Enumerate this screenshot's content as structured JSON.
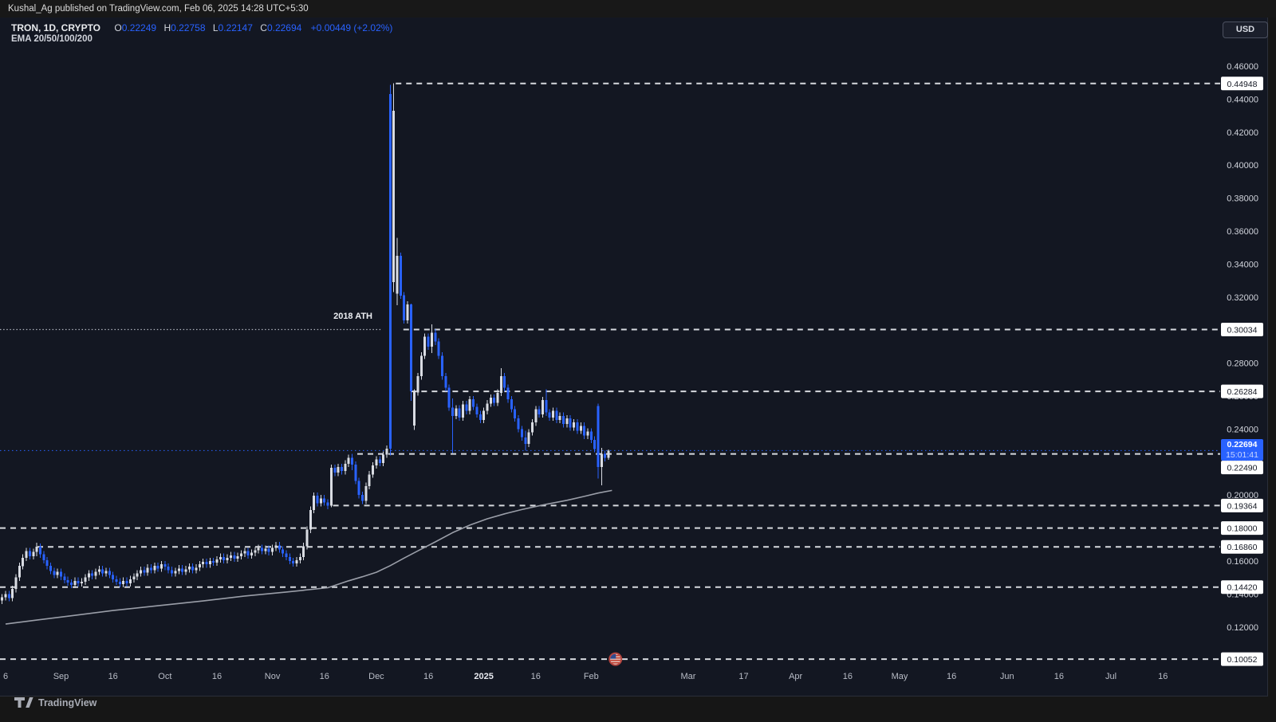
{
  "attribution": {
    "text": "Kushal_Ag published on TradingView.com, Feb 06, 2025 14:28 UTC+5:30"
  },
  "symbol_bar": {
    "title": "TRON, 1D, CRYPTO",
    "o_label": "O",
    "o_value": "0.22249",
    "h_label": "H",
    "h_value": "0.22758",
    "l_label": "L",
    "l_value": "0.22147",
    "c_label": "C",
    "c_value": "0.22694",
    "change": "+0.00449 (+2.02%)"
  },
  "indicator_bar": {
    "label": "EMA 20/50/100/200"
  },
  "currency_button": {
    "label": "USD"
  },
  "watermark": {
    "label": "TradingView"
  },
  "annotations": {
    "ath_text": "2018 ATH",
    "ath_price": 0.30034,
    "ath_dotted_to_day": 109.5
  },
  "current_price": {
    "value": "0.22694",
    "countdown": "15:01:41",
    "price": 0.22694
  },
  "icons": {
    "event_marker": "us-flag-circle-icon",
    "logo_mark": "tradingview-mark-icon"
  },
  "chart_data": {
    "type": "candlestick",
    "symbol": "TRON",
    "interval": "1D",
    "exchange": "CRYPTO",
    "quote_currency": "USD",
    "ylim": [
      0.1,
      0.46
    ],
    "y_axis": {
      "tick_max": 0.46,
      "tick_min": 0.1,
      "tick_step": 0.02,
      "decimals": 5
    },
    "x_axis": {
      "start_date": "2024-08-15",
      "ticks": [
        {
          "label": "6",
          "day": 1
        },
        {
          "label": "Sep",
          "day": 17
        },
        {
          "label": "16",
          "day": 32
        },
        {
          "label": "Oct",
          "day": 47
        },
        {
          "label": "16",
          "day": 62
        },
        {
          "label": "Nov",
          "day": 78
        },
        {
          "label": "16",
          "day": 93
        },
        {
          "label": "Dec",
          "day": 108
        },
        {
          "label": "16",
          "day": 123
        },
        {
          "label": "2025",
          "day": 139,
          "bold": true
        },
        {
          "label": "16",
          "day": 154
        },
        {
          "label": "Feb",
          "day": 170
        },
        {
          "label": "Mar",
          "day": 198
        },
        {
          "label": "17",
          "day": 214
        },
        {
          "label": "Apr",
          "day": 229
        },
        {
          "label": "16",
          "day": 244
        },
        {
          "label": "May",
          "day": 259
        },
        {
          "label": "16",
          "day": 274
        },
        {
          "label": "Jun",
          "day": 290
        },
        {
          "label": "16",
          "day": 305
        },
        {
          "label": "Jul",
          "day": 320
        },
        {
          "label": "16",
          "day": 335
        }
      ]
    },
    "levels": [
      {
        "price": 0.44948,
        "label": "0.44948",
        "from_day": 113.6
      },
      {
        "price": 0.30034,
        "label": "0.30034",
        "from_day": 115.8
      },
      {
        "price": 0.26284,
        "label": "0.26284",
        "from_day": 118.0
      },
      {
        "price": 0.2249,
        "label": "0.22490",
        "from_day": 102.5,
        "label_dy": 17
      },
      {
        "price": 0.19364,
        "label": "0.19364",
        "from_day": 95.5
      },
      {
        "price": 0.18,
        "label": "0.18000",
        "from_day": null
      },
      {
        "price": 0.1686,
        "label": "0.16860",
        "from_day": 10.2
      },
      {
        "price": 0.1442,
        "label": "0.14420",
        "from_day": null
      },
      {
        "price": 0.10052,
        "label": "0.10052",
        "from_day": null
      }
    ],
    "closes": [
      0.138,
      0.14,
      0.1375,
      0.143,
      0.15,
      0.157,
      0.162,
      0.166,
      0.163,
      0.1655,
      0.1686,
      0.164,
      0.1605,
      0.157,
      0.154,
      0.1515,
      0.1535,
      0.1505,
      0.1485,
      0.147,
      0.1455,
      0.148,
      0.1465,
      0.1475,
      0.15,
      0.1525,
      0.151,
      0.1535,
      0.155,
      0.1525,
      0.154,
      0.1515,
      0.149,
      0.1475,
      0.146,
      0.148,
      0.1465,
      0.149,
      0.1505,
      0.1525,
      0.1545,
      0.153,
      0.156,
      0.1545,
      0.157,
      0.1555,
      0.158,
      0.1565,
      0.1545,
      0.1525,
      0.154,
      0.1555,
      0.1535,
      0.155,
      0.1565,
      0.1545,
      0.156,
      0.158,
      0.1595,
      0.158,
      0.16,
      0.159,
      0.161,
      0.1625,
      0.1605,
      0.162,
      0.1635,
      0.1615,
      0.163,
      0.1645,
      0.166,
      0.1635,
      0.165,
      0.1665,
      0.168,
      0.166,
      0.1675,
      0.1655,
      0.168,
      0.1695,
      0.167,
      0.1645,
      0.1625,
      0.16,
      0.1585,
      0.1605,
      0.1625,
      0.169,
      0.179,
      0.191,
      0.1995,
      0.195,
      0.198,
      0.1955,
      0.1935,
      0.2165,
      0.2135,
      0.217,
      0.2145,
      0.219,
      0.2225,
      0.2185,
      0.2085,
      0.2,
      0.1965,
      0.2055,
      0.2125,
      0.218,
      0.2215,
      0.2195,
      0.2245,
      0.228,
      0.228,
      0.433,
      0.345,
      0.321,
      0.306,
      0.3155,
      0.2628,
      0.2623,
      0.272,
      0.2845,
      0.296,
      0.29,
      0.2985,
      0.293,
      0.2845,
      0.272,
      0.265,
      0.253,
      0.248,
      0.2525,
      0.247,
      0.255,
      0.251,
      0.258,
      0.2535,
      0.249,
      0.2455,
      0.251,
      0.2555,
      0.259,
      0.256,
      0.262,
      0.272,
      0.265,
      0.258,
      0.252,
      0.2465,
      0.24,
      0.235,
      0.231,
      0.238,
      0.244,
      0.252,
      0.249,
      0.2575,
      0.25,
      0.247,
      0.251,
      0.2455,
      0.248,
      0.243,
      0.2465,
      0.241,
      0.244,
      0.239,
      0.242,
      0.236,
      0.2385,
      0.2335,
      0.228,
      0.2165,
      0.225,
      0.2225,
      0.22694
    ],
    "overrides": {
      "10": [
        0.1655,
        0.1712,
        0.163,
        0.1686
      ],
      "95": [
        0.1935,
        0.2185,
        0.1925,
        0.2165
      ],
      "101": [
        0.2225,
        0.2249,
        0.215,
        0.2185
      ],
      "112": [
        0.443,
        0.4486,
        0.224,
        0.228
      ],
      "113": [
        0.329,
        0.4495,
        0.323,
        0.433
      ],
      "114": [
        0.322,
        0.356,
        0.315,
        0.345
      ],
      "118": [
        0.3155,
        0.316,
        0.257,
        0.2628
      ],
      "119": [
        0.242,
        0.264,
        0.2395,
        0.2623
      ],
      "124": [
        0.29,
        0.3035,
        0.286,
        0.2985
      ],
      "130": [
        0.253,
        0.2585,
        0.2255,
        0.248
      ],
      "144": [
        0.262,
        0.277,
        0.26,
        0.272
      ],
      "151": [
        0.235,
        0.239,
        0.2268,
        0.231
      ],
      "157": [
        0.2575,
        0.264,
        0.248,
        0.25
      ],
      "172": [
        0.254,
        0.2555,
        0.21,
        0.217
      ],
      "173": [
        0.217,
        0.2285,
        0.2058,
        0.225
      ],
      "175": [
        0.22249,
        0.22758,
        0.22147,
        0.22694
      ]
    },
    "ema_points": [
      [
        1,
        0.1218
      ],
      [
        10,
        0.1242
      ],
      [
        20,
        0.1268
      ],
      [
        32,
        0.13
      ],
      [
        45,
        0.1329
      ],
      [
        58,
        0.1358
      ],
      [
        70,
        0.1388
      ],
      [
        82,
        0.1412
      ],
      [
        94,
        0.1438
      ],
      [
        100,
        0.148
      ],
      [
        104,
        0.1505
      ],
      [
        108,
        0.1532
      ],
      [
        112,
        0.1572
      ],
      [
        116,
        0.1618
      ],
      [
        120,
        0.1662
      ],
      [
        125,
        0.1716
      ],
      [
        130,
        0.1772
      ],
      [
        135,
        0.1818
      ],
      [
        140,
        0.1856
      ],
      [
        145,
        0.1886
      ],
      [
        150,
        0.1912
      ],
      [
        157,
        0.1944
      ],
      [
        163,
        0.1968
      ],
      [
        168,
        0.1992
      ],
      [
        172,
        0.2012
      ],
      [
        176,
        0.2028
      ]
    ],
    "event_marker": {
      "day": 177,
      "price": 0.10052
    },
    "colors": {
      "background": "#131722",
      "outer_background": "#161616",
      "up": "#d9dce3",
      "down": "#2962ff",
      "accent": "#2962ff",
      "level_line": "#d6d9de",
      "dotted_line": "#aeb2bc",
      "ema": "#9a9ea8",
      "axis_text": "#d1d4dc",
      "label_box_bg": "#ffffff",
      "label_box_text": "#131722"
    }
  }
}
